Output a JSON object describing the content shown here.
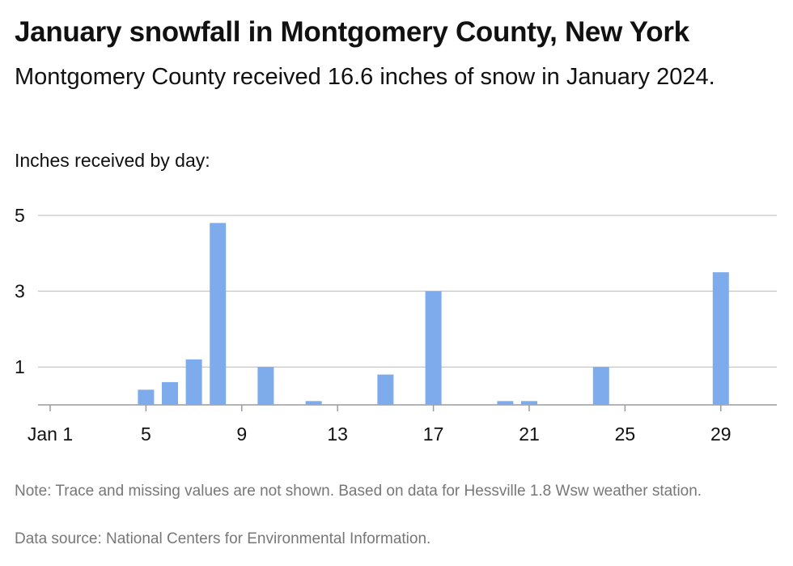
{
  "title": "January snowfall in Montgomery County, New York",
  "subtitle": "Montgomery County received 16.6 inches of snow in January 2024.",
  "axis_caption": "Inches received by day:",
  "note": "Note: Trace and missing values are not shown. Based on data for Hessville 1.8 Wsw weather station.",
  "source": "Data source: National Centers for Environmental Information.",
  "chart_data": {
    "type": "bar",
    "title": "January snowfall in Montgomery County, New York",
    "ylabel": "Inches received by day:",
    "xlabel": "",
    "x_tick_labels": [
      "Jan 1",
      "5",
      "9",
      "13",
      "17",
      "21",
      "25",
      "29"
    ],
    "x_tick_days": [
      1,
      5,
      9,
      13,
      17,
      21,
      25,
      29
    ],
    "y_ticks": [
      1,
      3,
      5
    ],
    "ylim": [
      0,
      5
    ],
    "xlim": [
      1,
      31
    ],
    "grid": true,
    "bar_color": "#7eabeb",
    "points": [
      {
        "day": 5,
        "value": 0.4
      },
      {
        "day": 6,
        "value": 0.6
      },
      {
        "day": 7,
        "value": 1.2
      },
      {
        "day": 8,
        "value": 4.8
      },
      {
        "day": 10,
        "value": 1.0
      },
      {
        "day": 12,
        "value": 0.1
      },
      {
        "day": 15,
        "value": 0.8
      },
      {
        "day": 17,
        "value": 3.0
      },
      {
        "day": 20,
        "value": 0.1
      },
      {
        "day": 21,
        "value": 0.1
      },
      {
        "day": 24,
        "value": 1.0
      },
      {
        "day": 29,
        "value": 3.5
      }
    ]
  }
}
